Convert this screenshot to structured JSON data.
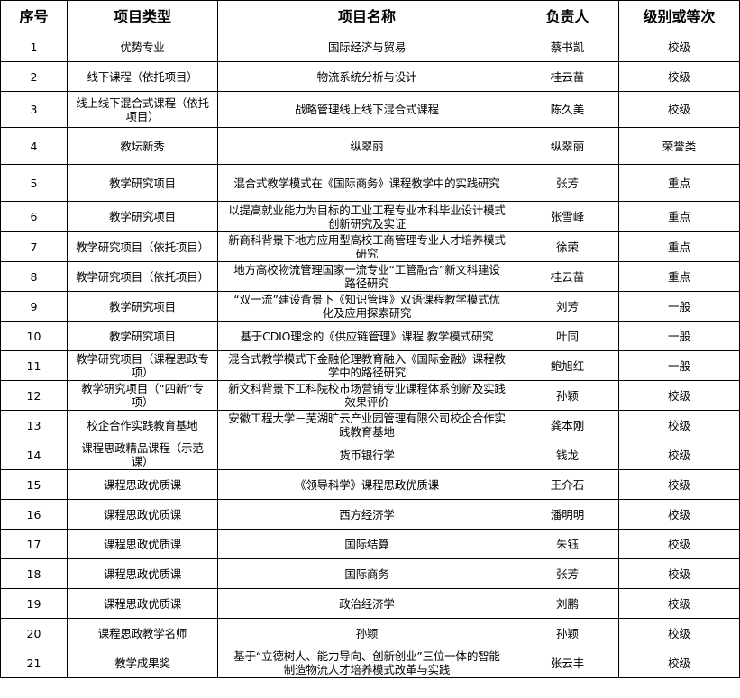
{
  "headers": [
    "序号",
    "项目类型",
    "项目名称",
    "负责人",
    "级别或等次"
  ],
  "rows": [
    {
      "no": "1",
      "type": "优势专业",
      "name": "国际经济与贸易",
      "leader": "蔡书凯",
      "level": "校级"
    },
    {
      "no": "2",
      "type": "线下课程（依托项目）",
      "name": "物流系统分析与设计",
      "leader": "桂云苗",
      "level": "校级"
    },
    {
      "no": "3",
      "type": "线上线下混合式课程（依托\n项目）",
      "name": "战略管理线上线下混合式课程",
      "leader": "陈久美",
      "level": "校级"
    },
    {
      "no": "4",
      "type": "教坛新秀",
      "name": "纵翠丽",
      "leader": "纵翠丽",
      "level": "荣誉类"
    },
    {
      "no": "5",
      "type": "教学研究项目",
      "name": "混合式教学模式在《国际商务》课程教学中的实践研究",
      "leader": "张芳",
      "level": "重点"
    },
    {
      "no": "6",
      "type": "教学研究项目",
      "name": "以提高就业能力为目标的工业工程专业本科毕业设计模式\n创新研究及实证",
      "leader": "张雪峰",
      "level": "重点"
    },
    {
      "no": "7",
      "type": "教学研究项目（依托项目）",
      "name": "新商科背景下地方应用型高校工商管理专业人才培养模式\n研究",
      "leader": "徐荣",
      "level": "重点"
    },
    {
      "no": "8",
      "type": "教学研究项目（依托项目）",
      "name": "地方高校物流管理国家一流专业“工管融合”新文科建设\n路径研究",
      "leader": "桂云苗",
      "level": "重点"
    },
    {
      "no": "9",
      "type": "教学研究项目",
      "name": "“双一流”建设背景下《知识管理》双语课程教学模式优\n化及应用探索研究",
      "leader": "刘芳",
      "level": "一般"
    },
    {
      "no": "10",
      "type": "教学研究项目",
      "name": "基于CDIO理念的《供应链管理》课程  教学模式研究",
      "leader": "叶同",
      "level": "一般"
    },
    {
      "no": "11",
      "type": "教学研究项目（课程思政专\n项）",
      "name": "混合式教学模式下金融伦理教育融入《国际金融》课程教\n学中的路径研究",
      "leader": "鲍旭红",
      "level": "一般"
    },
    {
      "no": "12",
      "type": "教学研究项目（“四新”专\n项）",
      "name": "新文科背景下工科院校市场营销专业课程体系创新及实践\n效果评价",
      "leader": "孙颖",
      "level": "校级"
    },
    {
      "no": "13",
      "type": "校企合作实践教育基地",
      "name": "安徽工程大学－芜湖旷云产业园管理有限公司校企合作实\n践教育基地",
      "leader": "龚本刚",
      "level": "校级"
    },
    {
      "no": "14",
      "type": "课程思政精品课程（示范\n课）",
      "name": "货币银行学",
      "leader": "钱龙",
      "level": "校级"
    },
    {
      "no": "15",
      "type": "课程思政优质课",
      "name": "《领导科学》课程思政优质课",
      "leader": "王介石",
      "level": "校级"
    },
    {
      "no": "16",
      "type": "课程思政优质课",
      "name": "西方经济学",
      "leader": "潘明明",
      "level": "校级"
    },
    {
      "no": "17",
      "type": "课程思政优质课",
      "name": "国际结算",
      "leader": "朱钰",
      "level": "校级"
    },
    {
      "no": "18",
      "type": "课程思政优质课",
      "name": "国际商务",
      "leader": "张芳",
      "level": "校级"
    },
    {
      "no": "19",
      "type": "课程思政优质课",
      "name": "政治经济学",
      "leader": "刘鹏",
      "level": "校级"
    },
    {
      "no": "20",
      "type": "课程思政教学名师",
      "name": "孙颖",
      "leader": "孙颖",
      "level": "校级"
    },
    {
      "no": "21",
      "type": "教学成果奖",
      "name": "基于“立德树人、能力导向、创新创业”三位一体的智能\n制造物流人才培养模式改革与实践",
      "leader": "张云丰",
      "level": "校级"
    }
  ]
}
